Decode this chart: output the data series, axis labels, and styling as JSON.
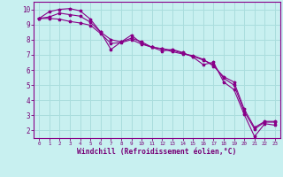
{
  "xlabel": "Windchill (Refroidissement éolien,°C)",
  "bg_color": "#c8f0f0",
  "line_color": "#880088",
  "grid_color": "#aadddd",
  "ylim": [
    1.5,
    10.5
  ],
  "xlim": [
    -0.5,
    23.5
  ],
  "yticks": [
    2,
    3,
    4,
    5,
    6,
    7,
    8,
    9,
    10
  ],
  "xticks": [
    0,
    1,
    2,
    3,
    4,
    5,
    6,
    7,
    8,
    9,
    10,
    11,
    12,
    13,
    14,
    15,
    16,
    17,
    18,
    19,
    20,
    21,
    22,
    23
  ],
  "lines": [
    [
      9.4,
      9.85,
      10.0,
      10.05,
      9.9,
      9.35,
      8.5,
      7.35,
      7.85,
      8.3,
      7.75,
      7.5,
      7.25,
      7.35,
      7.15,
      6.85,
      6.35,
      6.5,
      5.2,
      4.7,
      3.05,
      1.6,
      2.45,
      2.35
    ],
    [
      9.4,
      9.5,
      9.75,
      9.65,
      9.55,
      9.15,
      8.5,
      8.0,
      7.85,
      8.1,
      7.85,
      7.5,
      7.4,
      7.3,
      7.1,
      6.9,
      6.65,
      6.35,
      5.45,
      5.0,
      3.25,
      2.1,
      2.55,
      2.55
    ],
    [
      9.4,
      9.4,
      9.35,
      9.2,
      9.1,
      8.95,
      8.4,
      7.75,
      7.8,
      8.0,
      7.7,
      7.5,
      7.4,
      7.2,
      7.05,
      6.95,
      6.7,
      6.25,
      5.55,
      5.2,
      3.4,
      2.2,
      2.6,
      2.6
    ]
  ]
}
